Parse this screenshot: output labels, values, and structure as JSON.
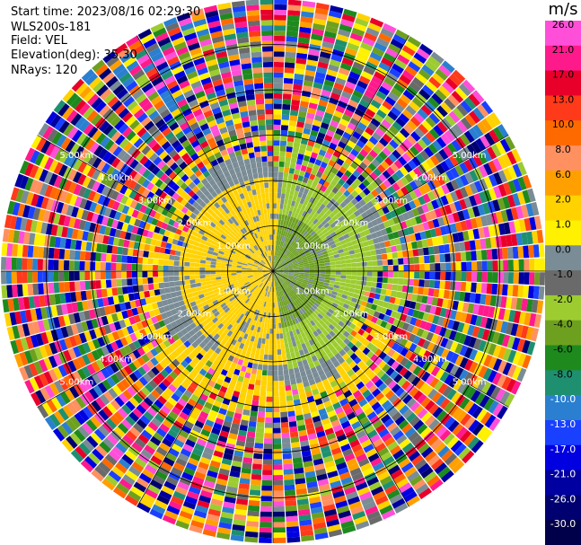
{
  "info": {
    "start_time": "Start time: 2023/08/16 02:29:30",
    "site": "WLS200s-181",
    "field": "Field: VEL",
    "elevation": "Elevation(deg): 35.30",
    "nrays": "NRays: 120"
  },
  "chart_data": {
    "type": "heatmap",
    "projection": "polar-ppi",
    "title": "",
    "nrays": 120,
    "range_rings_km": [
      1.0,
      2.0,
      3.0,
      4.0,
      5.0
    ],
    "ring_labels": [
      "1.00km",
      "2.00km",
      "3.00km",
      "4.00km",
      "5.00km"
    ],
    "max_range_km": 6.0,
    "colorbar": {
      "unit": "m/s",
      "ticks": [
        "26.0",
        "21.0",
        "17.0",
        "13.0",
        "10.0",
        "8.0",
        "6.0",
        "2.0",
        "1.0",
        "0.0",
        "-1.0",
        "-2.0",
        "-4.0",
        "-6.0",
        "-8.0",
        "-10.0",
        "-13.0",
        "-17.0",
        "-21.0",
        "-26.0",
        "-30.0"
      ],
      "colors": [
        "#ff4fd8",
        "#ff1a8c",
        "#e8002a",
        "#ff3a1a",
        "#ff6a00",
        "#ff9060",
        "#ffa000",
        "#ffd200",
        "#fff100",
        "#7a8c95",
        "#6a6a6a",
        "#9ccc30",
        "#6ea020",
        "#1e8a1e",
        "#1e9070",
        "#2a7fd0",
        "#1a40ff",
        "#0000e0",
        "#0000a0",
        "#000070",
        "#00004a"
      ]
    },
    "pattern": {
      "inner_east_km": 1.2,
      "inner_east_value": -4.0,
      "east_half_to_km": 2.2,
      "east_half_value": -2.0,
      "west_half_to_km": 2.0,
      "west_half_value": 1.5,
      "south_ring_km": [
        2.2,
        3.2
      ],
      "south_ring_value": 1.5,
      "gray_value": 0.0,
      "noise_start_km": 2.3
    }
  }
}
